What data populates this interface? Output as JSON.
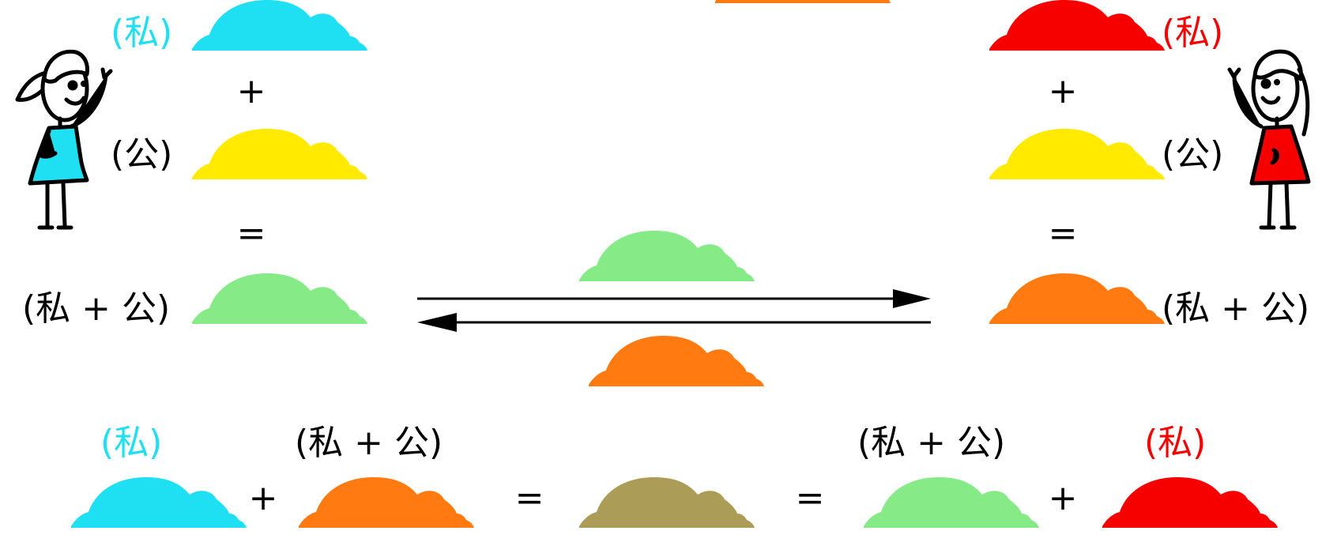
{
  "colors": {
    "private_left": "#1ee0f2",
    "private_right": "#f70000",
    "public": "#ffea00",
    "mixed_left": "#86ea86",
    "mixed_right": "#ff7a10",
    "shared_secret": "#ab9c58",
    "line": "#000000",
    "text": "#000000"
  },
  "labels": {
    "private": "(私)",
    "public": "(公)",
    "mixed": "(私 + 公)"
  },
  "operators": {
    "plus": "+",
    "equals": "="
  },
  "icons": {
    "person_left": "stick-figure-woman-cyan-dress",
    "person_right": "stick-figure-woman-red-dress",
    "paint": "paint-blob"
  }
}
